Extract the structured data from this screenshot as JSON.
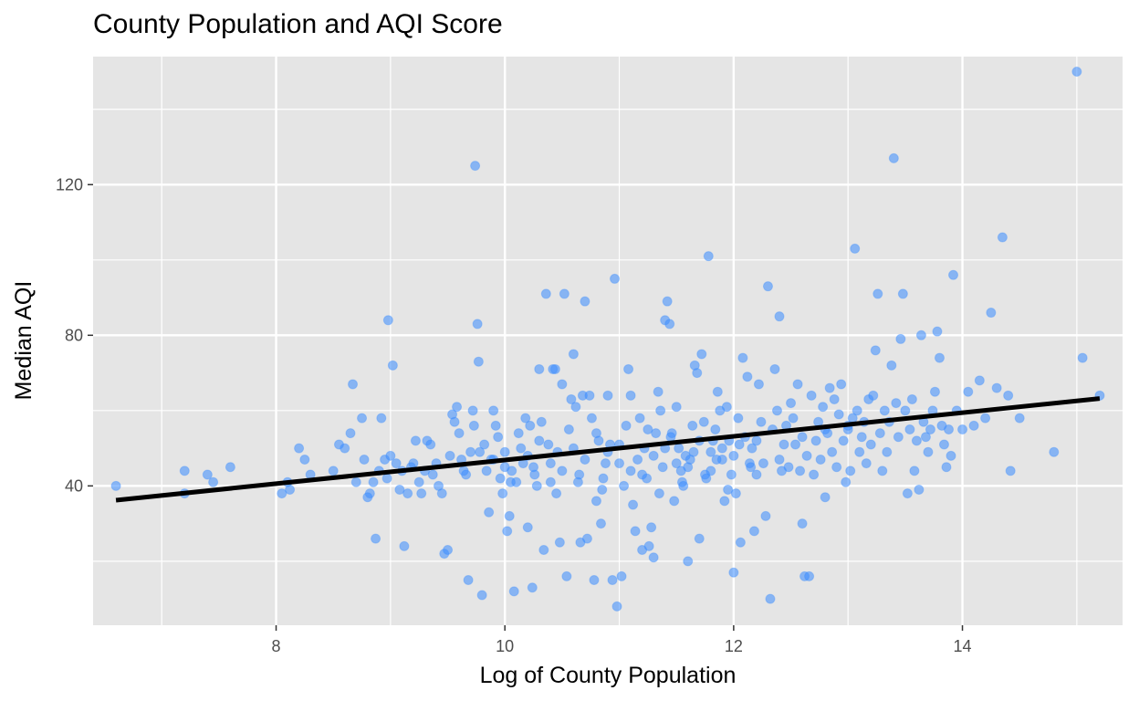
{
  "chart_data": {
    "type": "scatter",
    "title": "County Population and AQI Score",
    "xlabel": "Log of County Population",
    "ylabel": "Median AQI",
    "xlim": [
      6.4,
      15.4
    ],
    "ylim": [
      3,
      154
    ],
    "x_ticks": [
      8,
      10,
      12,
      14
    ],
    "y_ticks": [
      40,
      80,
      120
    ],
    "x_tick_labels": [
      "8",
      "10",
      "12",
      "14"
    ],
    "y_tick_labels": [
      "40",
      "80",
      "120"
    ],
    "grid": true,
    "point_color": "#3a8dff",
    "point_opacity": 0.55,
    "panel_background": "#e5e5e5",
    "trend_line": {
      "x": [
        6.6,
        15.2
      ],
      "y": [
        36.2,
        63.2
      ],
      "color": "#000000"
    },
    "points": [
      [
        6.6,
        40
      ],
      [
        7.2,
        44
      ],
      [
        7.2,
        38
      ],
      [
        7.4,
        43
      ],
      [
        7.45,
        41
      ],
      [
        7.6,
        45
      ],
      [
        8.05,
        38
      ],
      [
        8.1,
        41
      ],
      [
        8.12,
        39
      ],
      [
        8.2,
        50
      ],
      [
        8.25,
        47
      ],
      [
        8.3,
        43
      ],
      [
        8.5,
        44
      ],
      [
        8.55,
        51
      ],
      [
        8.6,
        50
      ],
      [
        8.65,
        54
      ],
      [
        8.67,
        67
      ],
      [
        8.7,
        41
      ],
      [
        8.75,
        58
      ],
      [
        8.77,
        47
      ],
      [
        8.8,
        37
      ],
      [
        8.82,
        38
      ],
      [
        8.85,
        41
      ],
      [
        8.87,
        26
      ],
      [
        8.9,
        44
      ],
      [
        8.92,
        58
      ],
      [
        8.95,
        47
      ],
      [
        8.97,
        42
      ],
      [
        8.98,
        84
      ],
      [
        9.0,
        48
      ],
      [
        9.02,
        72
      ],
      [
        9.05,
        46
      ],
      [
        9.08,
        39
      ],
      [
        9.1,
        44
      ],
      [
        9.12,
        24
      ],
      [
        9.15,
        38
      ],
      [
        9.18,
        45
      ],
      [
        9.2,
        46
      ],
      [
        9.22,
        52
      ],
      [
        9.25,
        41
      ],
      [
        9.27,
        38
      ],
      [
        9.3,
        44
      ],
      [
        9.32,
        52
      ],
      [
        9.35,
        51
      ],
      [
        9.37,
        43
      ],
      [
        9.4,
        46
      ],
      [
        9.42,
        40
      ],
      [
        9.45,
        38
      ],
      [
        9.47,
        22
      ],
      [
        9.5,
        23
      ],
      [
        9.52,
        48
      ],
      [
        9.54,
        59
      ],
      [
        9.56,
        57
      ],
      [
        9.58,
        61
      ],
      [
        9.6,
        54
      ],
      [
        9.62,
        47
      ],
      [
        9.64,
        44
      ],
      [
        9.66,
        43
      ],
      [
        9.68,
        15
      ],
      [
        9.7,
        49
      ],
      [
        9.72,
        60
      ],
      [
        9.73,
        56
      ],
      [
        9.74,
        125
      ],
      [
        9.76,
        83
      ],
      [
        9.77,
        73
      ],
      [
        9.78,
        49
      ],
      [
        9.8,
        11
      ],
      [
        9.82,
        51
      ],
      [
        9.84,
        44
      ],
      [
        9.86,
        33
      ],
      [
        9.88,
        47
      ],
      [
        9.9,
        60
      ],
      [
        9.92,
        56
      ],
      [
        9.94,
        53
      ],
      [
        9.96,
        42
      ],
      [
        9.98,
        38
      ],
      [
        10.0,
        49
      ],
      [
        10.02,
        28
      ],
      [
        10.04,
        32
      ],
      [
        10.06,
        44
      ],
      [
        10.08,
        12
      ],
      [
        10.1,
        41
      ],
      [
        10.12,
        54
      ],
      [
        10.14,
        50
      ],
      [
        10.16,
        46
      ],
      [
        10.18,
        58
      ],
      [
        10.2,
        29
      ],
      [
        10.22,
        56
      ],
      [
        10.24,
        13
      ],
      [
        10.26,
        43
      ],
      [
        10.28,
        40
      ],
      [
        10.3,
        71
      ],
      [
        10.32,
        57
      ],
      [
        10.34,
        23
      ],
      [
        10.36,
        91
      ],
      [
        10.38,
        51
      ],
      [
        10.4,
        41
      ],
      [
        10.42,
        71
      ],
      [
        10.44,
        71
      ],
      [
        10.46,
        49
      ],
      [
        10.48,
        25
      ],
      [
        10.5,
        67
      ],
      [
        10.52,
        91
      ],
      [
        10.54,
        16
      ],
      [
        10.56,
        55
      ],
      [
        10.58,
        63
      ],
      [
        10.6,
        75
      ],
      [
        10.62,
        61
      ],
      [
        10.64,
        41
      ],
      [
        10.66,
        25
      ],
      [
        10.68,
        64
      ],
      [
        10.7,
        89
      ],
      [
        10.72,
        26
      ],
      [
        10.74,
        64
      ],
      [
        10.76,
        58
      ],
      [
        10.78,
        15
      ],
      [
        10.8,
        36
      ],
      [
        10.82,
        52
      ],
      [
        10.84,
        30
      ],
      [
        10.86,
        42
      ],
      [
        10.88,
        46
      ],
      [
        10.9,
        64
      ],
      [
        10.92,
        51
      ],
      [
        10.94,
        15
      ],
      [
        10.96,
        95
      ],
      [
        10.98,
        8
      ],
      [
        11.0,
        51
      ],
      [
        11.02,
        16
      ],
      [
        11.04,
        40
      ],
      [
        11.06,
        56
      ],
      [
        11.08,
        71
      ],
      [
        11.1,
        64
      ],
      [
        11.12,
        35
      ],
      [
        11.14,
        28
      ],
      [
        11.16,
        47
      ],
      [
        11.18,
        58
      ],
      [
        11.2,
        23
      ],
      [
        11.22,
        50
      ],
      [
        11.24,
        42
      ],
      [
        11.26,
        24
      ],
      [
        11.28,
        29
      ],
      [
        11.3,
        21
      ],
      [
        11.32,
        54
      ],
      [
        11.34,
        65
      ],
      [
        11.36,
        60
      ],
      [
        11.38,
        45
      ],
      [
        11.4,
        84
      ],
      [
        11.42,
        89
      ],
      [
        11.44,
        83
      ],
      [
        11.46,
        54
      ],
      [
        11.48,
        36
      ],
      [
        11.5,
        61
      ],
      [
        11.52,
        50
      ],
      [
        11.54,
        44
      ],
      [
        11.56,
        40
      ],
      [
        11.58,
        48
      ],
      [
        11.6,
        20
      ],
      [
        11.62,
        47
      ],
      [
        11.64,
        56
      ],
      [
        11.66,
        72
      ],
      [
        11.68,
        70
      ],
      [
        11.7,
        26
      ],
      [
        11.72,
        75
      ],
      [
        11.74,
        57
      ],
      [
        11.76,
        42
      ],
      [
        11.78,
        101
      ],
      [
        11.8,
        44
      ],
      [
        11.82,
        52
      ],
      [
        11.84,
        55
      ],
      [
        11.86,
        65
      ],
      [
        11.88,
        60
      ],
      [
        11.9,
        47
      ],
      [
        11.92,
        36
      ],
      [
        11.94,
        61
      ],
      [
        11.96,
        52
      ],
      [
        11.98,
        43
      ],
      [
        12.0,
        17
      ],
      [
        12.02,
        38
      ],
      [
        12.04,
        58
      ],
      [
        12.06,
        25
      ],
      [
        12.08,
        74
      ],
      [
        12.1,
        53
      ],
      [
        12.12,
        69
      ],
      [
        12.14,
        46
      ],
      [
        12.16,
        50
      ],
      [
        12.18,
        28
      ],
      [
        12.2,
        43
      ],
      [
        12.22,
        67
      ],
      [
        12.24,
        57
      ],
      [
        12.26,
        46
      ],
      [
        12.28,
        32
      ],
      [
        12.3,
        93
      ],
      [
        12.32,
        10
      ],
      [
        12.34,
        55
      ],
      [
        12.36,
        71
      ],
      [
        12.38,
        60
      ],
      [
        12.4,
        85
      ],
      [
        12.42,
        44
      ],
      [
        12.44,
        51
      ],
      [
        12.46,
        56
      ],
      [
        12.48,
        45
      ],
      [
        12.5,
        62
      ],
      [
        12.52,
        58
      ],
      [
        12.54,
        51
      ],
      [
        12.56,
        67
      ],
      [
        12.58,
        44
      ],
      [
        12.6,
        30
      ],
      [
        12.62,
        16
      ],
      [
        12.64,
        48
      ],
      [
        12.66,
        16
      ],
      [
        12.68,
        64
      ],
      [
        12.7,
        43
      ],
      [
        12.72,
        52
      ],
      [
        12.74,
        57
      ],
      [
        12.76,
        47
      ],
      [
        12.78,
        61
      ],
      [
        12.8,
        37
      ],
      [
        12.82,
        54
      ],
      [
        12.84,
        66
      ],
      [
        12.86,
        49
      ],
      [
        12.88,
        63
      ],
      [
        12.9,
        45
      ],
      [
        12.92,
        59
      ],
      [
        12.94,
        67
      ],
      [
        12.96,
        52
      ],
      [
        12.98,
        41
      ],
      [
        13.0,
        55
      ],
      [
        13.02,
        44
      ],
      [
        13.04,
        58
      ],
      [
        13.06,
        103
      ],
      [
        13.08,
        60
      ],
      [
        13.1,
        49
      ],
      [
        13.12,
        53
      ],
      [
        13.14,
        57
      ],
      [
        13.16,
        46
      ],
      [
        13.18,
        63
      ],
      [
        13.2,
        51
      ],
      [
        13.22,
        64
      ],
      [
        13.24,
        76
      ],
      [
        13.26,
        91
      ],
      [
        13.28,
        54
      ],
      [
        13.3,
        44
      ],
      [
        13.32,
        60
      ],
      [
        13.34,
        49
      ],
      [
        13.36,
        57
      ],
      [
        13.38,
        72
      ],
      [
        13.4,
        127
      ],
      [
        13.42,
        62
      ],
      [
        13.44,
        53
      ],
      [
        13.46,
        79
      ],
      [
        13.48,
        91
      ],
      [
        13.5,
        60
      ],
      [
        13.52,
        38
      ],
      [
        13.54,
        55
      ],
      [
        13.56,
        63
      ],
      [
        13.58,
        44
      ],
      [
        13.6,
        52
      ],
      [
        13.62,
        39
      ],
      [
        13.64,
        80
      ],
      [
        13.66,
        57
      ],
      [
        13.68,
        53
      ],
      [
        13.7,
        49
      ],
      [
        13.72,
        55
      ],
      [
        13.74,
        60
      ],
      [
        13.76,
        65
      ],
      [
        13.78,
        81
      ],
      [
        13.8,
        74
      ],
      [
        13.82,
        56
      ],
      [
        13.84,
        51
      ],
      [
        13.86,
        45
      ],
      [
        13.88,
        55
      ],
      [
        13.9,
        48
      ],
      [
        13.92,
        96
      ],
      [
        13.95,
        60
      ],
      [
        14.0,
        55
      ],
      [
        14.05,
        65
      ],
      [
        14.1,
        56
      ],
      [
        14.15,
        68
      ],
      [
        14.2,
        58
      ],
      [
        14.25,
        86
      ],
      [
        14.3,
        66
      ],
      [
        14.35,
        106
      ],
      [
        14.4,
        64
      ],
      [
        14.42,
        44
      ],
      [
        14.5,
        58
      ],
      [
        14.8,
        49
      ],
      [
        15.0,
        150
      ],
      [
        15.05,
        74
      ],
      [
        15.2,
        64
      ],
      [
        11.1,
        44
      ],
      [
        11.3,
        48
      ],
      [
        11.5,
        46
      ],
      [
        11.7,
        52
      ],
      [
        11.9,
        50
      ],
      [
        11.25,
        55
      ],
      [
        11.45,
        53
      ],
      [
        11.65,
        49
      ],
      [
        11.85,
        47
      ],
      [
        12.05,
        51
      ],
      [
        10.7,
        47
      ],
      [
        10.9,
        49
      ],
      [
        10.6,
        50
      ],
      [
        10.4,
        46
      ],
      [
        10.2,
        48
      ],
      [
        10.0,
        45
      ],
      [
        9.9,
        47
      ],
      [
        10.3,
        52
      ],
      [
        10.5,
        44
      ],
      [
        10.8,
        54
      ],
      [
        11.0,
        46
      ],
      [
        11.2,
        43
      ],
      [
        11.4,
        50
      ],
      [
        11.6,
        45
      ],
      [
        11.8,
        49
      ],
      [
        12.0,
        48
      ],
      [
        12.2,
        52
      ],
      [
        12.4,
        47
      ],
      [
        12.6,
        53
      ],
      [
        12.8,
        55
      ],
      [
        13.0,
        56
      ],
      [
        11.35,
        38
      ],
      [
        11.55,
        41
      ],
      [
        11.75,
        43
      ],
      [
        11.95,
        39
      ],
      [
        12.15,
        45
      ],
      [
        10.85,
        39
      ],
      [
        10.65,
        43
      ],
      [
        10.45,
        38
      ],
      [
        10.25,
        45
      ],
      [
        10.05,
        41
      ]
    ]
  }
}
